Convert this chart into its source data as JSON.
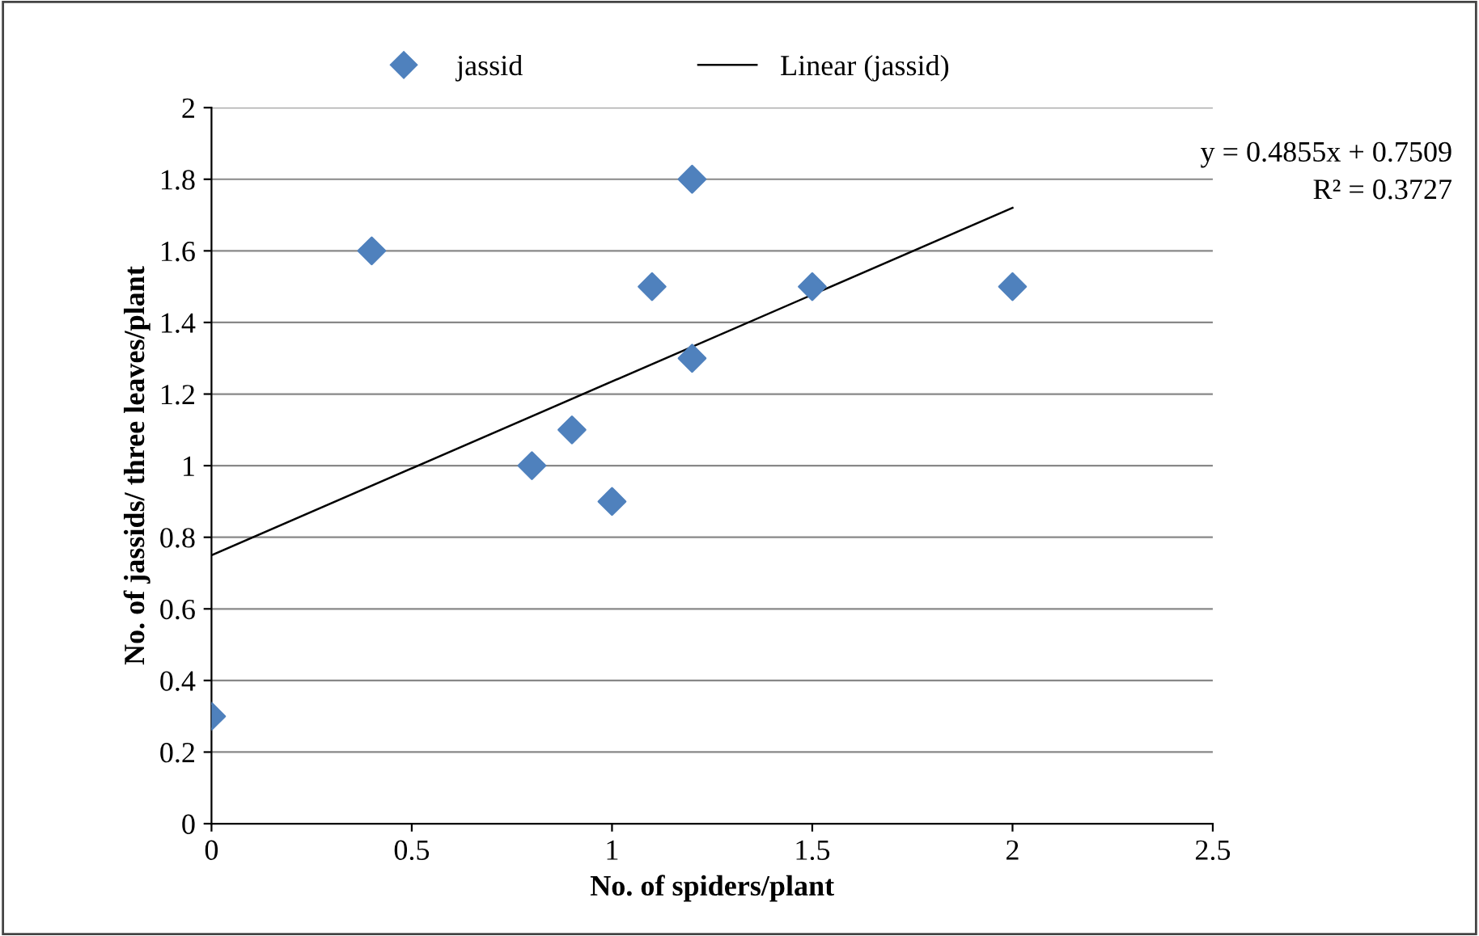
{
  "chart_data": {
    "type": "scatter",
    "xlabel": "No. of spiders/plant",
    "ylabel": "No. of jassids/ three leaves/plant",
    "series": [
      {
        "name": "jassid",
        "color": "#4f81bd",
        "marker": "diamond",
        "x": [
          0,
          0.4,
          0.8,
          0.9,
          1.0,
          1.1,
          1.2,
          1.2,
          1.5,
          2.0
        ],
        "values": [
          0.3,
          1.6,
          1.0,
          1.1,
          0.9,
          1.5,
          1.8,
          1.3,
          1.5,
          1.5
        ]
      },
      {
        "name": "Linear (jassid)",
        "color": "#000000",
        "type": "line",
        "marker": "none",
        "line_style": "solid",
        "x": [
          0,
          2
        ],
        "values": [
          0.75,
          1.72
        ]
      }
    ],
    "annotations": [
      "y = 0.4855x + 0.7509",
      "R² = 0.3727"
    ],
    "xlim": [
      0,
      2.5
    ],
    "xticks": [
      0,
      0.5,
      1,
      1.5,
      2,
      2.5
    ],
    "ylim": [
      0,
      2
    ],
    "yticks": [
      0,
      0.2,
      0.4,
      0.6,
      0.8,
      1,
      1.2,
      1.4,
      1.6,
      1.8,
      2
    ],
    "grid": "y",
    "legend": "top"
  }
}
